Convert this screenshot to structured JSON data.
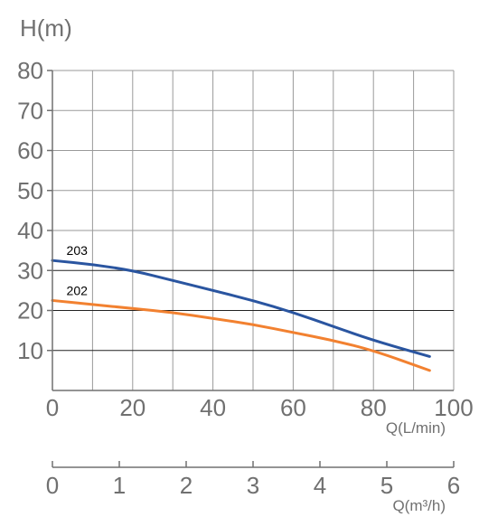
{
  "chart_data": {
    "type": "line",
    "ylabel": "H(m)",
    "xlabel": "Q(L/min)",
    "x2label": "Q(m³/h)",
    "xlim": [
      0,
      100
    ],
    "ylim": [
      0,
      80
    ],
    "x2lim": [
      0,
      6
    ],
    "x_ticks": [
      "0",
      "20",
      "40",
      "60",
      "80",
      "100"
    ],
    "y_ticks": [
      "10",
      "20",
      "30",
      "40",
      "50",
      "60",
      "70",
      "80"
    ],
    "x2_ticks": [
      "0",
      "1",
      "2",
      "3",
      "4",
      "5",
      "6"
    ],
    "grid": true,
    "colors": {
      "203": "#2a55a0",
      "202": "#f28130",
      "grid": "#9a9a9a",
      "axis": "#707070"
    },
    "series": [
      {
        "name": "203",
        "x": [
          0,
          10,
          20,
          30,
          40,
          50,
          60,
          70,
          80,
          94
        ],
        "y": [
          32.5,
          31.5,
          30,
          27.5,
          25,
          22.5,
          19.5,
          16,
          12.5,
          8.5
        ]
      },
      {
        "name": "202",
        "x": [
          0,
          10,
          20,
          30,
          40,
          50,
          60,
          70,
          80,
          94
        ],
        "y": [
          22.5,
          21.5,
          20.5,
          19.5,
          18,
          16.5,
          14.5,
          12.5,
          10,
          5
        ]
      }
    ]
  }
}
